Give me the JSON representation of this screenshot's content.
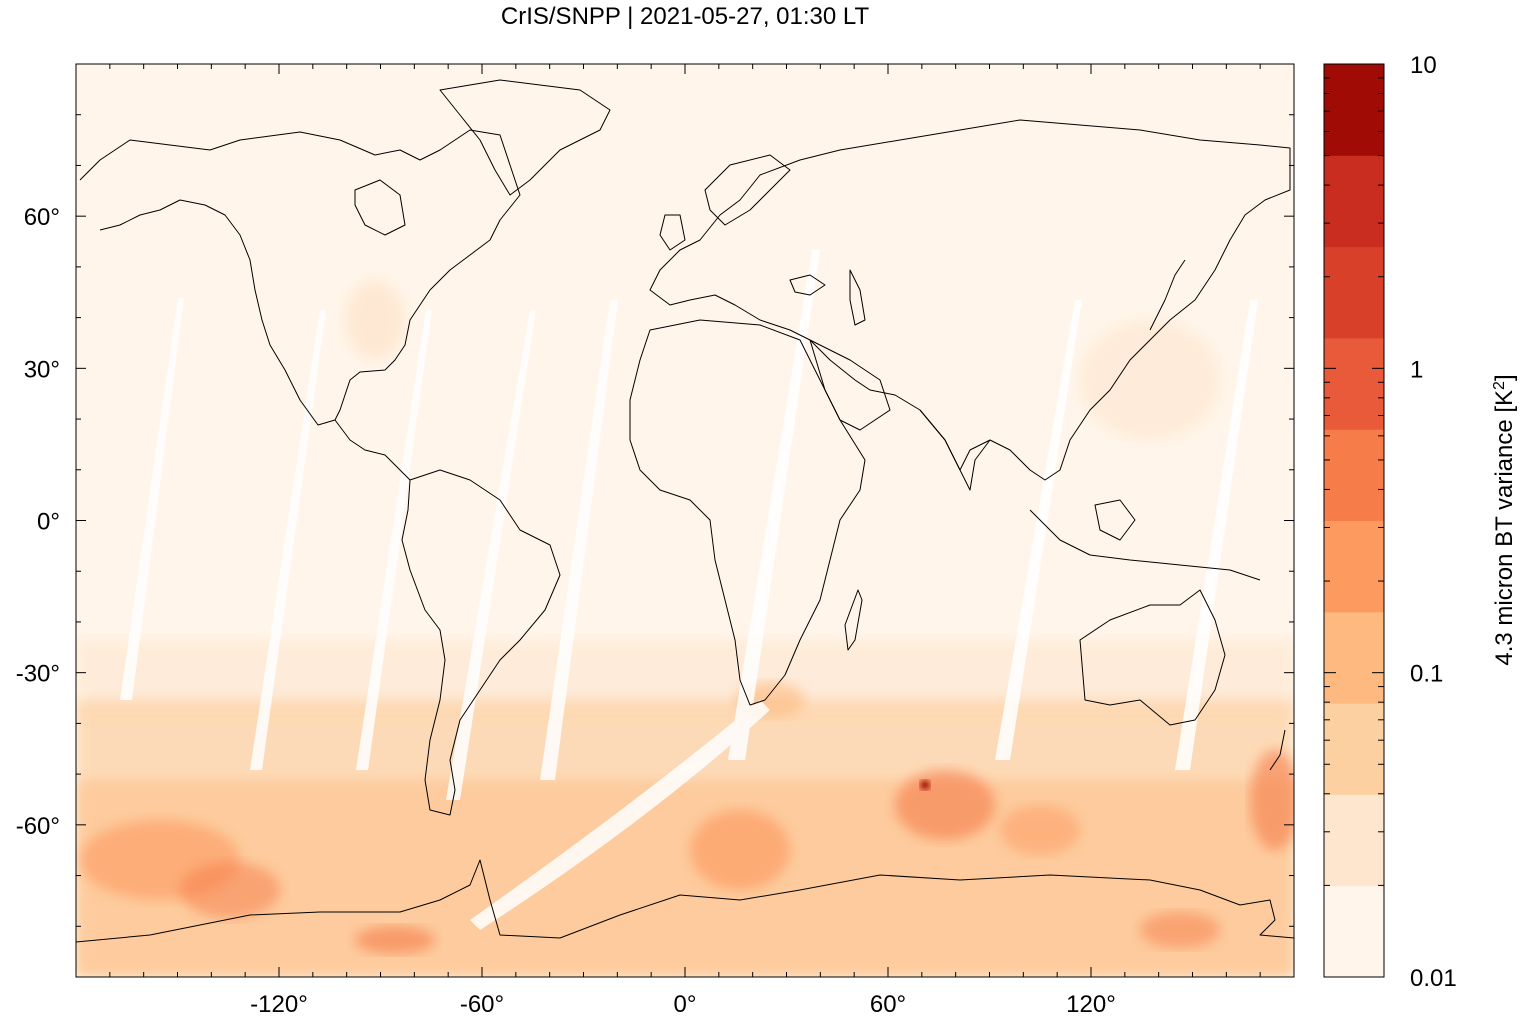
{
  "title": "CrIS/SNPP | 2021-05-27, 01:30 LT",
  "map": {
    "projection": "equirectangular",
    "lon_range": [
      -180,
      180
    ],
    "lat_range": [
      -90,
      90
    ],
    "lon_ticks": [
      {
        "value": -120,
        "label": "-120°"
      },
      {
        "value": -60,
        "label": "-60°"
      },
      {
        "value": 0,
        "label": "0°"
      },
      {
        "value": 60,
        "label": "60°"
      },
      {
        "value": 120,
        "label": "120°"
      }
    ],
    "lat_ticks": [
      {
        "value": 60,
        "label": "60°"
      },
      {
        "value": 30,
        "label": "30°"
      },
      {
        "value": 0,
        "label": "0°"
      },
      {
        "value": -30,
        "label": "-30°"
      },
      {
        "value": -60,
        "label": "-60°"
      }
    ],
    "background_color": "#fff5ea",
    "coastline_color": "#000000"
  },
  "colorbar": {
    "label_main": "4.3 micron BT variance [K",
    "label_sup": "2",
    "label_end": "]",
    "scale": "log",
    "range": [
      0.01,
      10
    ],
    "labels": [
      {
        "value": 10,
        "label": "10"
      },
      {
        "value": 1,
        "label": "1"
      },
      {
        "value": 0.1,
        "label": "0.1"
      },
      {
        "value": 0.01,
        "label": "0.01"
      }
    ],
    "colors": [
      "#fff5eb",
      "#fee6ce",
      "#fdd0a2",
      "#fdb97f",
      "#fd9a60",
      "#f67c4a",
      "#e85a3a",
      "#d8402a",
      "#c82d1f",
      "#a00c05"
    ]
  },
  "chart_data": {
    "type": "heatmap",
    "title": "CrIS/SNPP | 2021-05-27, 01:30 LT",
    "xlabel": "",
    "ylabel": "",
    "xlim": [
      -180,
      180
    ],
    "ylim": [
      -90,
      90
    ],
    "colorbar_range": [
      0.01,
      10
    ],
    "hotspots": [
      {
        "lon": 70,
        "lat": -52,
        "value": 3
      },
      {
        "lon": 77,
        "lat": -55,
        "value": 1
      },
      {
        "lon": 18,
        "lat": -62,
        "value": 0.6
      },
      {
        "lon": -160,
        "lat": -68,
        "value": 0.5
      },
      {
        "lon": -140,
        "lat": -72,
        "value": 0.5
      },
      {
        "lon": -88,
        "lat": -82,
        "value": 0.5
      },
      {
        "lon": 172,
        "lat": -55,
        "value": 0.6
      },
      {
        "lon": 145,
        "lat": -80,
        "value": 0.4
      },
      {
        "lon": 28,
        "lat": -34,
        "value": 0.2
      }
    ]
  }
}
